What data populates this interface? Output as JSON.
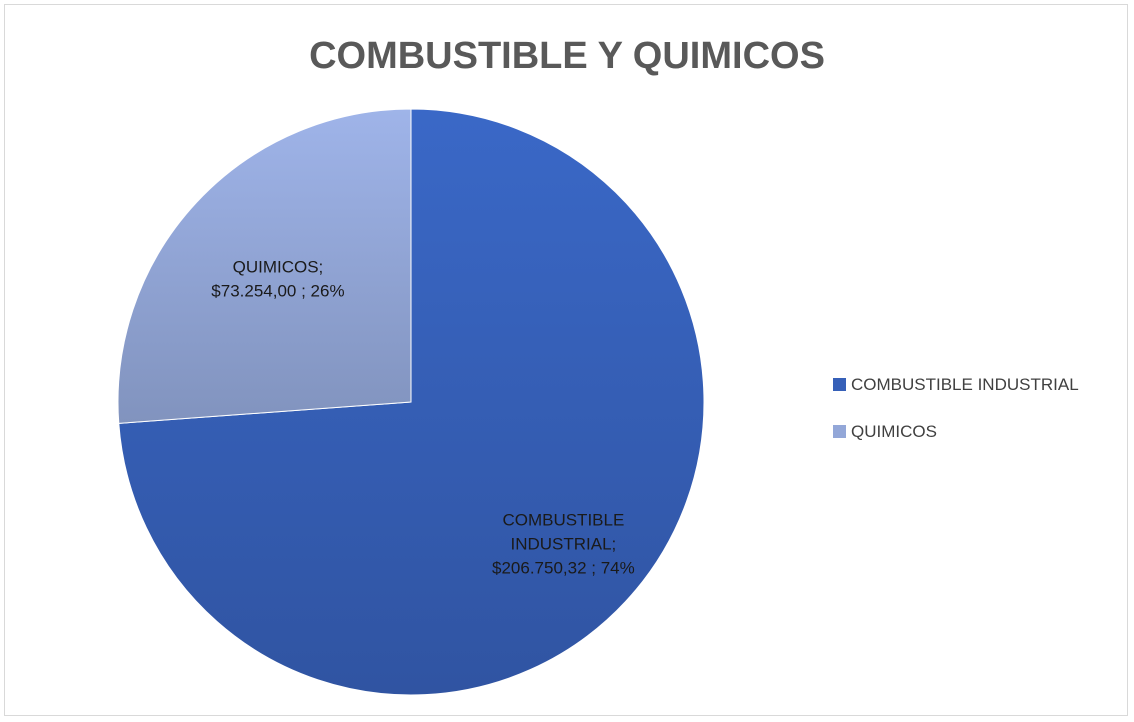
{
  "chart_data": {
    "type": "pie",
    "title": "COMBUSTIBLE Y QUIMICOS",
    "categories": [
      "COMBUSTIBLE INDUSTRIAL",
      "QUIMICOS"
    ],
    "values": [
      206750.32,
      73254.0
    ],
    "percentages": [
      74,
      26
    ],
    "data_labels": [
      [
        "COMBUSTIBLE",
        "INDUSTRIAL;",
        "$206.750,32 ; 74%"
      ],
      [
        "QUIMICOS;",
        "$73.254,00 ; 26%"
      ]
    ],
    "colors": [
      "#3660b8",
      "#93a7d8"
    ],
    "legend_position": "right"
  }
}
